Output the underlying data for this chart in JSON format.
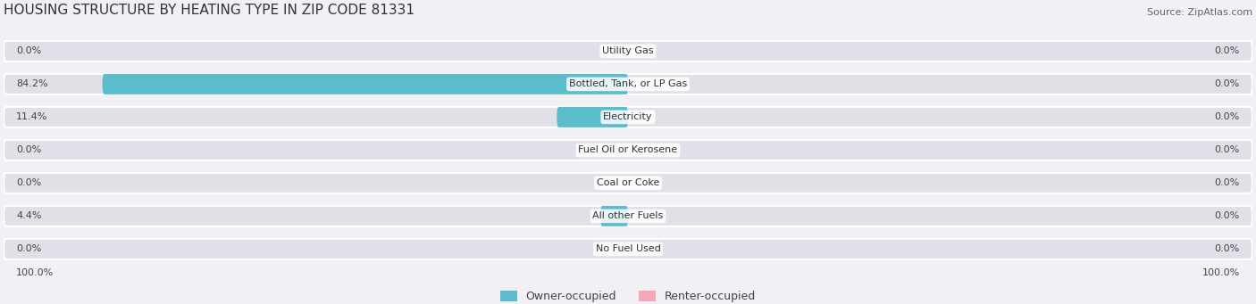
{
  "title": "HOUSING STRUCTURE BY HEATING TYPE IN ZIP CODE 81331",
  "source": "Source: ZipAtlas.com",
  "categories": [
    "Utility Gas",
    "Bottled, Tank, or LP Gas",
    "Electricity",
    "Fuel Oil or Kerosene",
    "Coal or Coke",
    "All other Fuels",
    "No Fuel Used"
  ],
  "owner_values": [
    0.0,
    84.2,
    11.4,
    0.0,
    0.0,
    4.4,
    0.0
  ],
  "renter_values": [
    0.0,
    0.0,
    0.0,
    0.0,
    0.0,
    0.0,
    0.0
  ],
  "owner_color": "#5bbccc",
  "renter_color": "#f4a7b9",
  "background_color": "#f0f0f5",
  "bar_background": "#e0e0e8",
  "title_fontsize": 11,
  "source_fontsize": 8,
  "label_fontsize": 8,
  "legend_fontsize": 9,
  "xlim": [
    -100,
    100
  ],
  "left_label": "100.0%",
  "right_label": "100.0%",
  "owner_label": "Owner-occupied",
  "renter_label": "Renter-occupied"
}
